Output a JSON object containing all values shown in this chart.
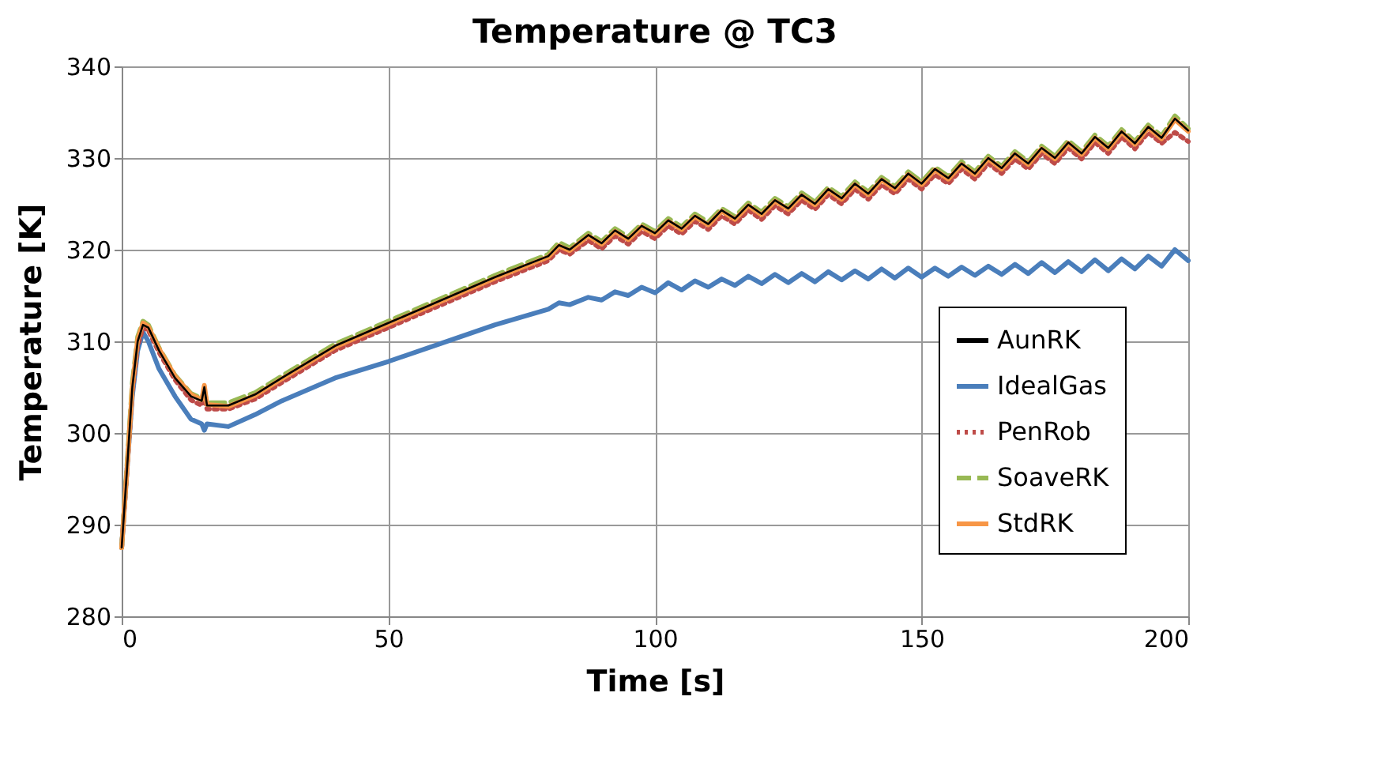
{
  "chart_data": {
    "type": "line",
    "title": "Temperature @ TC3",
    "xlabel": "Time [s]",
    "ylabel": "Temperature [K]",
    "x": [
      0,
      1,
      2,
      3,
      4,
      5,
      7,
      10,
      13,
      15,
      15.5,
      16,
      20,
      25,
      30,
      40,
      50,
      60,
      70,
      80,
      82,
      84,
      87.5,
      90,
      92.5,
      95,
      97.5,
      100,
      102.5,
      105,
      107.5,
      110,
      112.5,
      115,
      117.5,
      120,
      122.5,
      125,
      127.5,
      130,
      132.5,
      135,
      137.5,
      140,
      142.5,
      145,
      147.5,
      150,
      152.5,
      155,
      157.5,
      160,
      162.5,
      165,
      167.5,
      170,
      172.5,
      175,
      177.5,
      180,
      182.5,
      185,
      187.5,
      190,
      192.5,
      195,
      197.5,
      200
    ],
    "series": [
      {
        "name": "AunRK",
        "color": "#000000",
        "line_style": "solid",
        "values": [
          287.5,
          296,
          305,
          310,
          311.8,
          311.5,
          309,
          306,
          304,
          303.5,
          305,
          303,
          303,
          304.2,
          306,
          309.5,
          312,
          314.5,
          317,
          319.3,
          320.5,
          320,
          321.6,
          320.7,
          322.1,
          321.2,
          322.6,
          321.8,
          323.2,
          322.3,
          323.7,
          322.8,
          324.3,
          323.4,
          324.9,
          323.9,
          325.4,
          324.5,
          326.0,
          325.0,
          326.6,
          325.6,
          327.2,
          326.1,
          327.7,
          326.7,
          328.3,
          327.2,
          328.8,
          327.8,
          329.4,
          328.3,
          330.0,
          328.9,
          330.5,
          329.4,
          331.1,
          330.0,
          331.7,
          330.5,
          332.3,
          331.1,
          332.9,
          331.6,
          333.4,
          332.2,
          334.3,
          333.0
        ]
      },
      {
        "name": "IdealGas",
        "color": "#4a7ebb",
        "line_style": "solid",
        "values": [
          287.5,
          296,
          304,
          309,
          311,
          310,
          307,
          304,
          301.5,
          301,
          300.3,
          301,
          300.7,
          302,
          303.5,
          306,
          307.8,
          309.8,
          311.8,
          313.5,
          314.2,
          314,
          314.8,
          314.5,
          315.4,
          315,
          315.9,
          315.3,
          316.4,
          315.6,
          316.6,
          315.9,
          316.8,
          316.1,
          317.1,
          316.3,
          317.3,
          316.4,
          317.4,
          316.5,
          317.6,
          316.7,
          317.7,
          316.8,
          317.9,
          316.9,
          318.0,
          317.0,
          318.0,
          317.1,
          318.1,
          317.2,
          318.2,
          317.3,
          318.4,
          317.4,
          318.6,
          317.5,
          318.7,
          317.6,
          318.9,
          317.7,
          319.0,
          317.9,
          319.3,
          318.2,
          320.0,
          318.8
        ]
      },
      {
        "name": "PenRob",
        "color": "#be4b48",
        "line_style": "dotted",
        "values": [
          287.5,
          296,
          304.5,
          309.5,
          311.5,
          311.2,
          308.8,
          305.8,
          303.6,
          303,
          303.8,
          302.6,
          302.6,
          303.7,
          305.5,
          309,
          311.5,
          314,
          316.5,
          318.8,
          320,
          319.5,
          321.0,
          320.1,
          321.5,
          320.6,
          322.0,
          321.2,
          322.6,
          321.7,
          323.1,
          322.2,
          323.7,
          322.8,
          324.3,
          323.3,
          324.8,
          323.9,
          325.4,
          324.4,
          326.0,
          325.0,
          326.6,
          325.5,
          327.1,
          326.1,
          327.7,
          326.6,
          328.2,
          327.2,
          328.8,
          327.7,
          329.4,
          328.3,
          329.9,
          328.8,
          330.5,
          329.4,
          331.1,
          329.9,
          331.7,
          330.5,
          332.3,
          331.0,
          332.8,
          331.6,
          332.8,
          331.8
        ]
      },
      {
        "name": "SoaveRK",
        "color": "#98b954",
        "line_style": "dashed",
        "values": [
          287.5,
          296.5,
          305.5,
          310.5,
          312.2,
          311.8,
          309.3,
          306.3,
          304.3,
          303.8,
          304.5,
          303.3,
          303.3,
          304.4,
          306.2,
          309.7,
          312.2,
          314.7,
          317.2,
          319.5,
          320.8,
          320.2,
          321.8,
          320.9,
          322.3,
          321.4,
          322.8,
          322.0,
          323.4,
          322.5,
          323.9,
          323.0,
          324.5,
          323.6,
          325.1,
          324.1,
          325.6,
          324.7,
          326.2,
          325.2,
          326.8,
          325.8,
          327.4,
          326.3,
          327.9,
          326.9,
          328.5,
          327.4,
          329.0,
          328.0,
          329.6,
          328.5,
          330.2,
          329.1,
          330.7,
          329.6,
          331.3,
          330.2,
          331.9,
          330.7,
          332.5,
          331.3,
          333.1,
          331.8,
          333.6,
          332.4,
          334.6,
          333.2
        ]
      },
      {
        "name": "StdRK",
        "color": "#f79646",
        "line_style": "solid",
        "values": [
          287.5,
          296,
          305,
          310.2,
          312,
          311.6,
          309.2,
          306.2,
          304.2,
          303.6,
          305.2,
          303.1,
          302.9,
          304.1,
          305.9,
          309.4,
          311.9,
          314.4,
          316.9,
          319.2,
          320.4,
          319.9,
          321.5,
          320.6,
          322.0,
          321.1,
          322.5,
          321.7,
          323.1,
          322.2,
          323.6,
          322.7,
          324.2,
          323.3,
          324.8,
          323.8,
          325.3,
          324.4,
          325.9,
          324.9,
          326.5,
          325.5,
          327.1,
          326.0,
          327.6,
          326.6,
          328.2,
          327.1,
          328.7,
          327.7,
          329.3,
          328.2,
          329.9,
          328.8,
          330.4,
          329.3,
          331.0,
          329.9,
          331.6,
          330.4,
          332.2,
          331.0,
          332.8,
          331.5,
          333.3,
          332.1,
          334.2,
          332.9
        ]
      }
    ],
    "xlim": [
      0,
      200
    ],
    "xticks": [
      0,
      50,
      100,
      150,
      200
    ],
    "ylim": [
      280,
      340
    ],
    "yticks": [
      280,
      290,
      300,
      310,
      320,
      330,
      340
    ],
    "grid": true,
    "legend": "bottom right"
  }
}
